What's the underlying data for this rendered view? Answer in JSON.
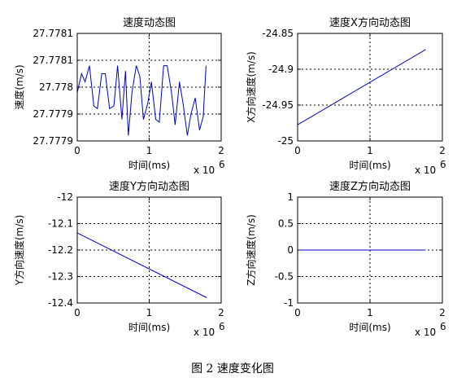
{
  "caption": "图 2 速度变化图",
  "chart_data": [
    {
      "type": "line",
      "title": "速度动态图",
      "xlabel": "时间(ms)",
      "ylabel": "速度(m/s)",
      "xlim": [
        0,
        2
      ],
      "ylim": [
        27.7779,
        27.7781
      ],
      "x_exponent_label": "x 10",
      "x_exponent": "6",
      "xticks": [
        0,
        1,
        2
      ],
      "xtick_labels": [
        "0",
        "1",
        "2"
      ],
      "yticks": [
        27.7779,
        27.77795,
        27.778,
        27.77805,
        27.7781
      ],
      "ytick_labels": [
        "27.7779",
        "27.7779",
        "27.778",
        "27.7781",
        "27.7781"
      ],
      "grid": true,
      "line_color": "#0000cc",
      "series": [
        {
          "x": [
            0,
            0.06,
            0.11,
            0.17,
            0.23,
            0.28,
            0.34,
            0.39,
            0.45,
            0.51,
            0.56,
            0.62,
            0.67,
            0.71,
            0.76,
            0.82,
            0.87,
            0.92,
            0.98,
            1.03,
            1.09,
            1.14,
            1.2,
            1.25,
            1.31,
            1.36,
            1.42,
            1.47,
            1.53,
            1.58,
            1.64,
            1.7,
            1.75,
            1.79
          ],
          "y": [
            27.77799,
            27.778025,
            27.77801,
            27.77804,
            27.777965,
            27.77796,
            27.778025,
            27.778025,
            27.77796,
            27.777965,
            27.77804,
            27.77794,
            27.77803,
            27.77791,
            27.77799,
            27.77804,
            27.77802,
            27.77794,
            27.77797,
            27.77801,
            27.77794,
            27.777935,
            27.77804,
            27.77804,
            27.77799,
            27.77793,
            27.77801,
            27.77797,
            27.77791,
            27.77795,
            27.77798,
            27.77792,
            27.777945,
            27.77804
          ]
        }
      ]
    },
    {
      "type": "line",
      "title": "速度X方向动态图",
      "xlabel": "时间(ms)",
      "ylabel": "X方向速度(m/s)",
      "xlim": [
        0,
        2
      ],
      "ylim": [
        -25,
        -24.85
      ],
      "x_exponent_label": "x 10",
      "x_exponent": "6",
      "xticks": [
        0,
        1,
        2
      ],
      "xtick_labels": [
        "0",
        "1",
        "2"
      ],
      "yticks": [
        -25,
        -24.95,
        -24.9,
        -24.85
      ],
      "ytick_labels": [
        "-25",
        "-24.95",
        "-24.9",
        "-24.85"
      ],
      "grid": true,
      "line_color": "#0000cc",
      "series": [
        {
          "x": [
            0,
            1.77
          ],
          "y": [
            -24.9775,
            -24.8725
          ]
        }
      ]
    },
    {
      "type": "line",
      "title": "速度Y方向动态图",
      "xlabel": "时间(ms)",
      "ylabel": "Y方向速度(m/s)",
      "xlim": [
        0,
        2
      ],
      "ylim": [
        -12.4,
        -12
      ],
      "x_exponent_label": "x 10",
      "x_exponent": "6",
      "xticks": [
        0,
        1,
        2
      ],
      "xtick_labels": [
        "0",
        "1",
        "2"
      ],
      "yticks": [
        -12.4,
        -12.3,
        -12.2,
        -12.1,
        -12
      ],
      "ytick_labels": [
        "-12.4",
        "-12.3",
        "-12.2",
        "-12.1",
        "-12"
      ],
      "grid": true,
      "line_color": "#0000cc",
      "series": [
        {
          "x": [
            0,
            1.8
          ],
          "y": [
            -12.135,
            -12.38
          ]
        }
      ]
    },
    {
      "type": "line",
      "title": "速度Z方向动态图",
      "xlabel": "时间(ms)",
      "ylabel": "Z方向速度(m/s)",
      "xlim": [
        0,
        2
      ],
      "ylim": [
        -1,
        1
      ],
      "x_exponent_label": "x 10",
      "x_exponent": "6",
      "xticks": [
        0,
        1,
        2
      ],
      "xtick_labels": [
        "0",
        "1",
        "2"
      ],
      "yticks": [
        -1,
        -0.5,
        0,
        0.5,
        1
      ],
      "ytick_labels": [
        "-1",
        "-0.5",
        "0",
        "0.5",
        "1"
      ],
      "grid": true,
      "line_color": "#0000cc",
      "series": [
        {
          "x": [
            0,
            1.77
          ],
          "y": [
            0,
            0
          ]
        }
      ]
    }
  ]
}
